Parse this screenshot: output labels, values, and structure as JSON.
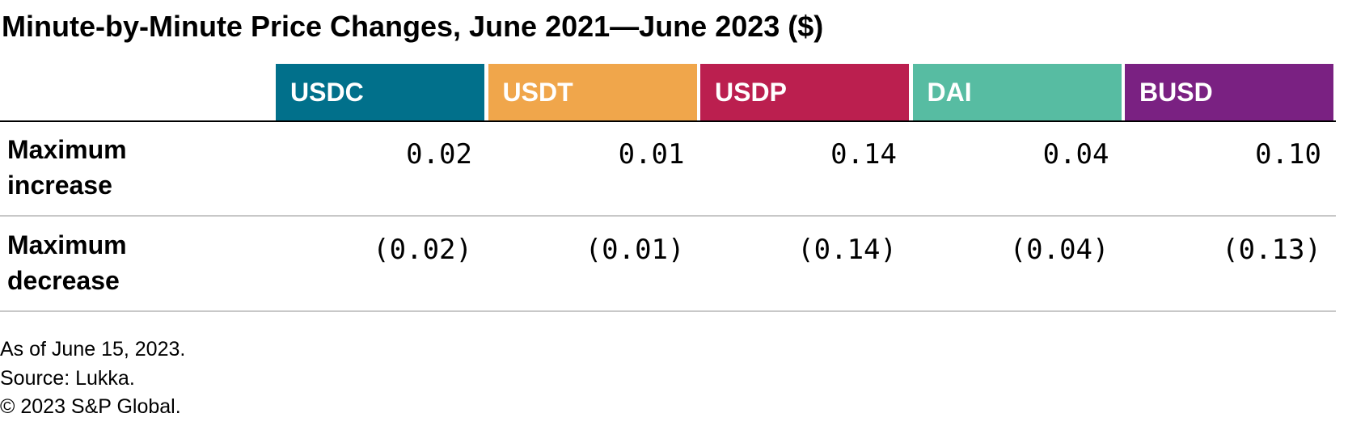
{
  "title": "Minute-by-Minute Price Changes, June 2021—June 2023 ($)",
  "table": {
    "columns": [
      {
        "name": "USDC",
        "color": "#01708b"
      },
      {
        "name": "USDT",
        "color": "#f0a64b"
      },
      {
        "name": "USDP",
        "color": "#bb1f4f"
      },
      {
        "name": "DAI",
        "color": "#57bca2"
      },
      {
        "name": "BUSD",
        "color": "#7a2182"
      }
    ],
    "rows": [
      {
        "label": "Maximum increase",
        "cells": [
          "0.02",
          "0.01",
          "0.14",
          "0.04",
          "0.10"
        ]
      },
      {
        "label": "Maximum decrease",
        "cells": [
          "(0.02)",
          "(0.01)",
          "(0.14)",
          "(0.04)",
          "(0.13)"
        ]
      }
    ]
  },
  "footnotes": [
    "As of June 15, 2023.",
    "Source: Lukka.",
    "© 2023 S&P Global."
  ]
}
